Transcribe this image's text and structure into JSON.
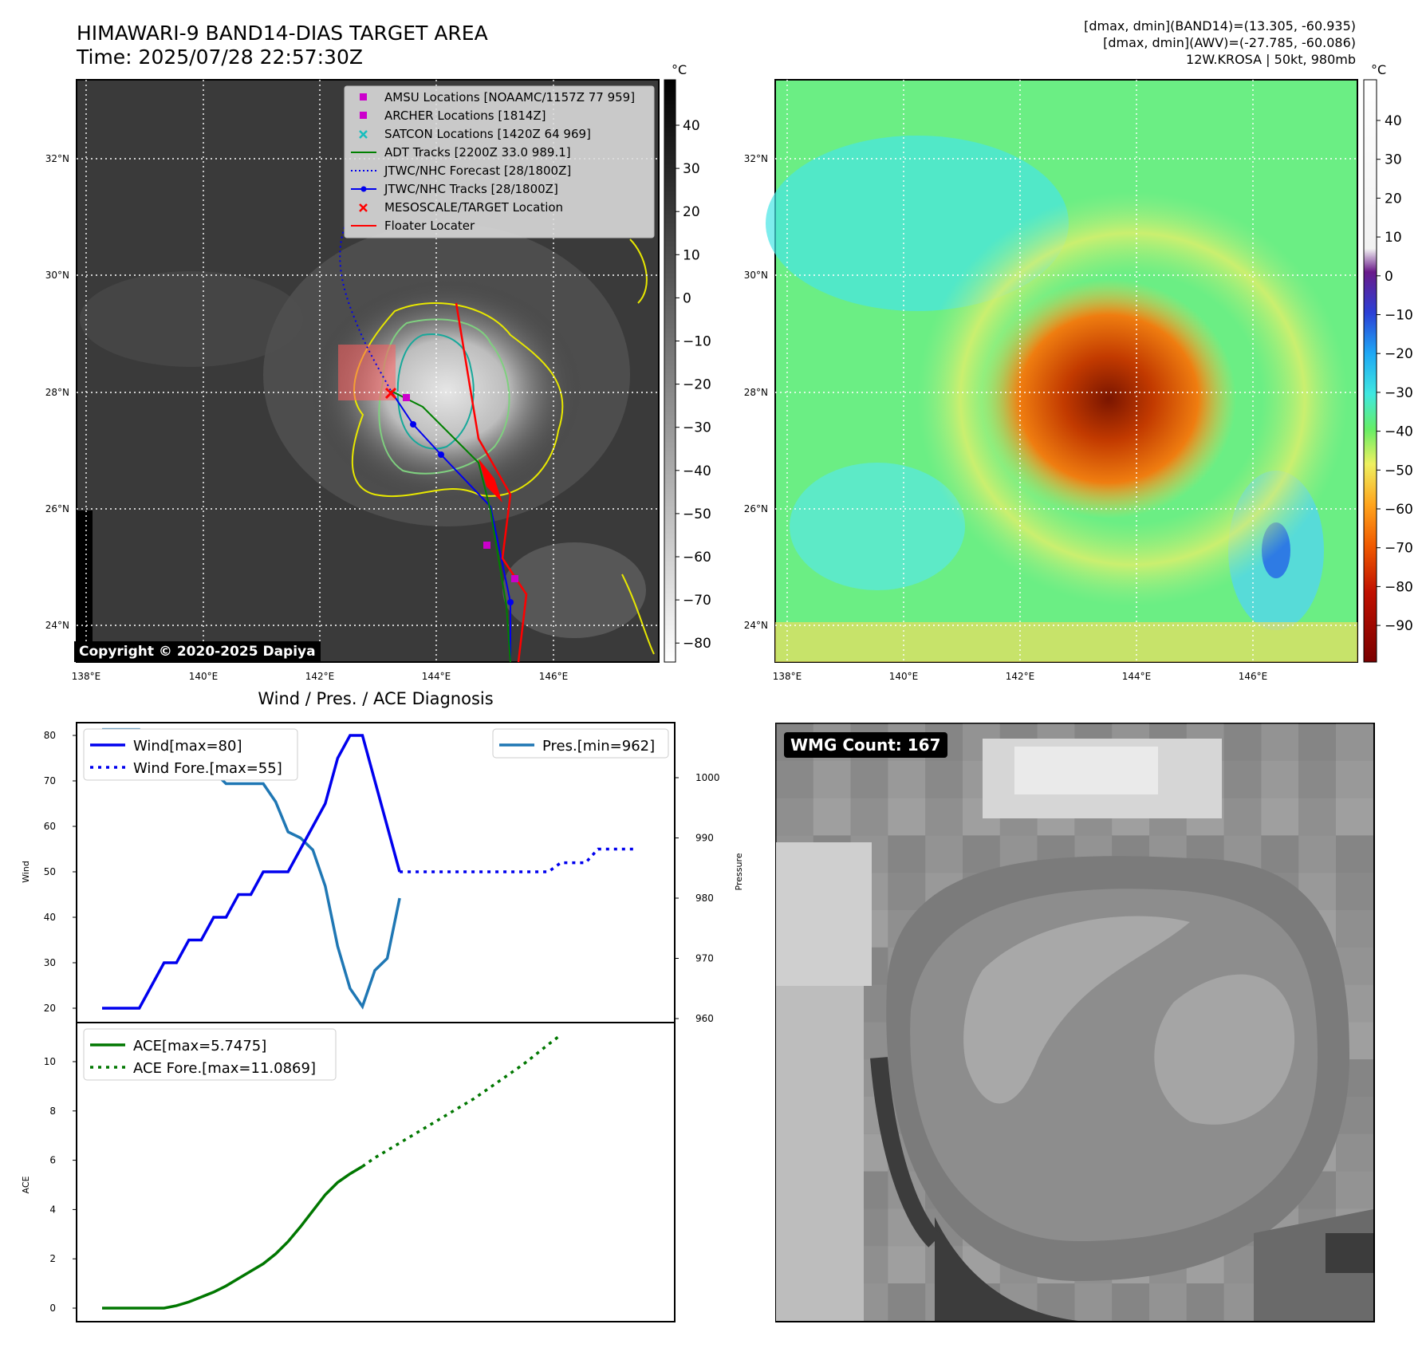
{
  "header": {
    "title_line1": "HIMAWARI-9 BAND14-DIAS TARGET AREA",
    "title_line2": "Time: 2025/07/28 22:57:30Z",
    "meta_line1": "[dmax, dmin](BAND14)=(13.305, -60.935)",
    "meta_line2": "[dmax, dmin](AWV)=(-27.785, -60.086)",
    "meta_line3": "12W.KROSA | 50kt, 980mb"
  },
  "map": {
    "lat_labels": [
      "32°N",
      "30°N",
      "28°N",
      "26°N",
      "24°N"
    ],
    "lon_labels": [
      "138°E",
      "140°E",
      "142°E",
      "144°E",
      "146°E"
    ],
    "copyright": "Copyright © 2020-2025 Dapiya",
    "unit": "°C",
    "legend": [
      {
        "label": "AMSU Locations [NOAAMC/1157Z 77 959]",
        "marker": "square",
        "color": "#cc00cc"
      },
      {
        "label": "ARCHER Locations [1814Z]",
        "marker": "square",
        "color": "#cc00cc"
      },
      {
        "label": "SATCON Locations [1420Z 64 969]",
        "marker": "x",
        "color": "#17bebe"
      },
      {
        "label": "ADT Tracks [2200Z 33.0 989.1]",
        "marker": "line",
        "color": "#008000"
      },
      {
        "label": "JTWC/NHC Forecast [28/1800Z]",
        "marker": "dotted",
        "color": "#0000ee"
      },
      {
        "label": "JTWC/NHC Tracks [28/1800Z]",
        "marker": "line-dot",
        "color": "#0000ee"
      },
      {
        "label": "MESOSCALE/TARGET Location",
        "marker": "x",
        "color": "#ff0000"
      },
      {
        "label": "Floater Locater",
        "marker": "line",
        "color": "#ff0000"
      }
    ],
    "gray_colorbar_ticks": [
      "40",
      "30",
      "20",
      "10",
      "0",
      "−10",
      "−20",
      "−30",
      "−40",
      "−50",
      "−60",
      "−70",
      "−80"
    ],
    "color_colorbar_ticks": [
      "40",
      "30",
      "20",
      "10",
      "0",
      "−10",
      "−20",
      "−30",
      "−40",
      "−50",
      "−60",
      "−70",
      "−80",
      "−90"
    ]
  },
  "diagnosis": {
    "title": "Wind / Pres. / ACE Diagnosis",
    "wind_ylabel": "Wind",
    "pres_ylabel": "Pressure",
    "ace_ylabel": "ACE",
    "wind_ticks": [
      "80",
      "70",
      "60",
      "50",
      "40",
      "30",
      "20"
    ],
    "pres_ticks": [
      "1000",
      "990",
      "980",
      "970",
      "960"
    ],
    "ace_ticks": [
      "10",
      "8",
      "6",
      "4",
      "2",
      "0"
    ],
    "legend_wind": "Wind[max=80]",
    "legend_wind_fore": "Wind Fore.[max=55]",
    "legend_pres": "Pres.[min=962]",
    "legend_ace": "ACE[max=5.7475]",
    "legend_ace_fore": "ACE Fore.[max=11.0869]"
  },
  "wmg": {
    "label": "WMG Count: 167"
  },
  "colors": {
    "wind": "#0000ee",
    "pressure": "#1f77b4",
    "ace": "#007700"
  },
  "chart_data": [
    {
      "type": "line",
      "title": "Wind / Pres. / ACE Diagnosis",
      "xlabel": "",
      "ylabel": "Wind",
      "ylim": [
        18,
        81
      ],
      "series": [
        {
          "name": "Wind[max=80]",
          "values": [
            20,
            20,
            20,
            20,
            25,
            30,
            30,
            35,
            35,
            40,
            40,
            45,
            45,
            50,
            50,
            50,
            55,
            60,
            65,
            75,
            80,
            80,
            70,
            60,
            50
          ]
        },
        {
          "name": "Wind Fore.[max=55]",
          "x_start": 24,
          "values": [
            50,
            50,
            50,
            50,
            50,
            50,
            50,
            50,
            50,
            50,
            50,
            50,
            50,
            52,
            52,
            52,
            55,
            55,
            55,
            55
          ]
        }
      ]
    },
    {
      "type": "line",
      "ylabel": "Pressure",
      "ylim": [
        960,
        1008
      ],
      "series": [
        {
          "name": "Pres.[min=962]",
          "values": [
            1008,
            1008,
            1008,
            1008,
            1005,
            1005,
            1004,
            1004,
            1001,
            1001,
            999,
            999,
            999,
            999,
            996,
            991,
            990,
            988,
            982,
            972,
            965,
            962,
            968,
            970,
            980
          ]
        }
      ]
    },
    {
      "type": "line",
      "ylabel": "ACE",
      "ylim": [
        -0.5,
        11.5
      ],
      "series": [
        {
          "name": "ACE[max=5.7475]",
          "values": [
            0,
            0,
            0,
            0,
            0,
            0,
            0.1,
            0.25,
            0.45,
            0.65,
            0.9,
            1.2,
            1.5,
            1.8,
            2.2,
            2.7,
            3.3,
            3.95,
            4.6,
            5.1,
            5.45,
            5.7475
          ]
        },
        {
          "name": "ACE Fore.[max=11.0869]",
          "x_start": 21,
          "values": [
            5.7475,
            6.1,
            6.4,
            6.7,
            7.0,
            7.3,
            7.6,
            7.9,
            8.2,
            8.5,
            8.85,
            9.2,
            9.55,
            9.9,
            10.3,
            10.7,
            11.0869
          ]
        }
      ]
    }
  ]
}
